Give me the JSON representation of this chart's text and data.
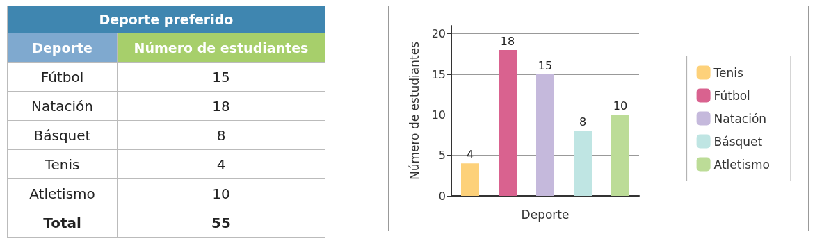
{
  "chart_data": [
    {
      "type": "other",
      "title": "Deporte preferido",
      "xlabel": "Deporte",
      "ylabel": "Número de estudiantes",
      "categories": [
        "Fútbol",
        "Natación",
        "Básquet",
        "Tenis",
        "Atletismo",
        "Total"
      ],
      "values": [
        15,
        18,
        8,
        4,
        10,
        55
      ],
      "data_labels": true
    },
    {
      "type": "bar",
      "xlabel": "Deporte",
      "ylabel": "Número de estudiantes",
      "categories": [
        null,
        null,
        null,
        null,
        null
      ],
      "series": [
        {
          "name": "Tenis",
          "color": "#fdd17a",
          "values": [
            4,
            null,
            null,
            null,
            null
          ]
        },
        {
          "name": "Fútbol",
          "color": "#d9628f",
          "values": [
            null,
            18,
            null,
            null,
            null
          ]
        },
        {
          "name": "Natación",
          "color": "#c5b9dc",
          "values": [
            null,
            null,
            15,
            null,
            null
          ]
        },
        {
          "name": "Básquet",
          "color": "#bfe5e3",
          "values": [
            null,
            null,
            null,
            8,
            null
          ]
        },
        {
          "name": "Atletismo",
          "color": "#bcdc97",
          "values": [
            null,
            null,
            null,
            null,
            10
          ]
        }
      ],
      "ylim": [
        0,
        21
      ],
      "yticks": [
        0,
        5,
        10,
        15,
        20
      ],
      "grid": "y",
      "legend": "right",
      "data_labels": true
    }
  ]
}
